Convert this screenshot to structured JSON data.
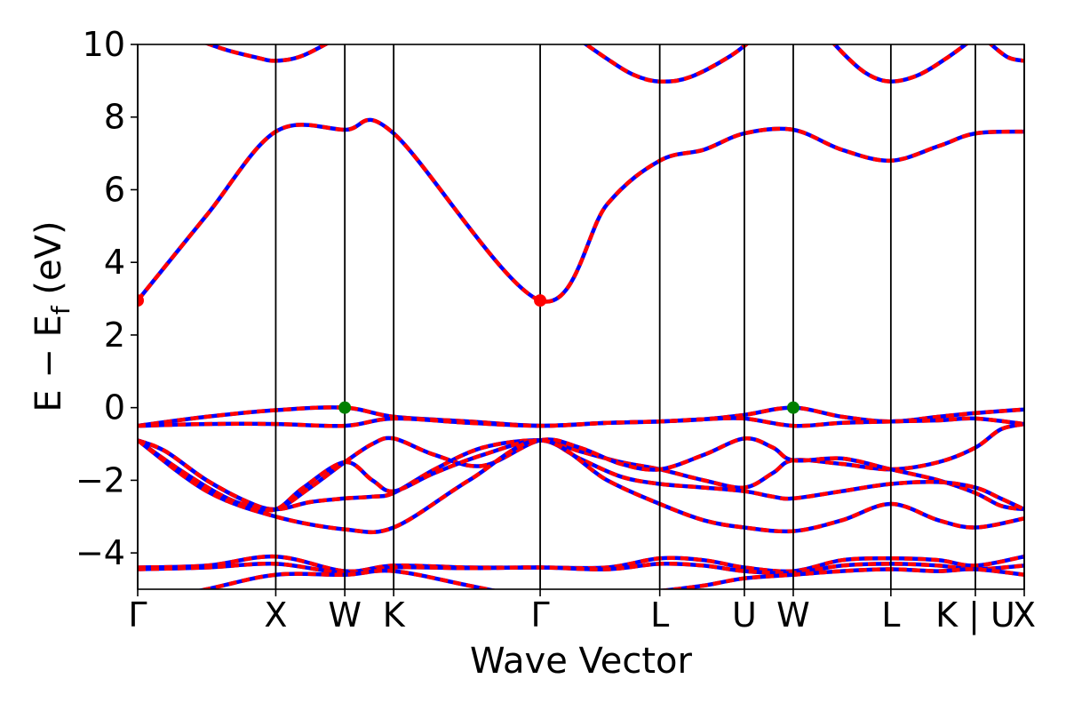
{
  "chart_data": {
    "type": "line",
    "title": "",
    "xlabel": "Wave Vector",
    "ylabel_main": "E − E",
    "ylabel_sub": "f",
    "ylabel_unit": " (eV)",
    "ylim": [
      -5,
      10
    ],
    "grid": false,
    "legend": "none",
    "yticks": [
      -4,
      -2,
      0,
      2,
      4,
      6,
      8,
      10
    ],
    "ytick_labels": [
      "−4",
      "−2",
      "0",
      "2",
      "4",
      "6",
      "8",
      "10"
    ],
    "kpoints": [
      {
        "label": "Γ",
        "k": 0
      },
      {
        "label": "X",
        "k": 1
      },
      {
        "label": "W",
        "k": 1.5
      },
      {
        "label": "K",
        "k": 1.854
      },
      {
        "label": "Γ",
        "k": 2.915
      },
      {
        "label": "L",
        "k": 3.781
      },
      {
        "label": "U",
        "k": 4.394
      },
      {
        "label": "W",
        "k": 4.748
      },
      {
        "label": "L",
        "k": 5.455
      },
      {
        "label": "K | U",
        "k": 6.067
      },
      {
        "label": "X",
        "k": 6.421
      }
    ],
    "xlim": [
      0,
      6.421
    ],
    "colors": {
      "band": "#ff0000",
      "band_dash": "#0000ff",
      "cbm": "#ff0000",
      "vbm": "#008000",
      "kline": "#000000"
    },
    "series": [
      {
        "x": [
          0,
          0.5,
          1.0,
          1.5,
          1.854,
          2.915,
          3.4,
          3.781,
          4.1,
          4.394,
          4.748,
          5.1,
          5.455,
          5.8,
          6.067,
          6.421
        ],
        "y": [
          2.95,
          5.3,
          7.6,
          7.65,
          7.55,
          2.95,
          5.6,
          6.8,
          7.1,
          7.55,
          7.65,
          7.1,
          6.8,
          7.2,
          7.55,
          7.6
        ]
      },
      {
        "x": [
          0,
          0.35,
          0.6,
          0.85,
          1.0,
          1.2,
          1.5
        ],
        "y": [
          11.2,
          10.3,
          9.9,
          9.65,
          9.55,
          9.7,
          10.3
        ]
      },
      {
        "x": [
          3.1,
          3.4,
          3.6,
          3.781,
          4.0,
          4.3,
          4.5
        ],
        "y": [
          10.4,
          9.6,
          9.15,
          8.98,
          9.1,
          9.7,
          10.3
        ]
      },
      {
        "x": [
          4.95,
          5.15,
          5.3,
          5.455,
          5.65,
          5.85,
          6.067
        ],
        "y": [
          10.4,
          9.6,
          9.15,
          8.98,
          9.15,
          9.6,
          10.2
        ]
      },
      {
        "x": [
          6.15,
          6.3,
          6.421
        ],
        "y": [
          10.1,
          9.65,
          9.55
        ]
      },
      {
        "x": [
          0,
          0.5,
          1.0,
          1.5,
          1.854,
          2.4,
          2.915,
          3.4,
          3.781,
          4.1,
          4.394,
          4.748,
          5.1,
          5.455,
          5.8,
          6.067,
          6.421
        ],
        "y": [
          -0.5,
          -0.25,
          -0.07,
          0.0,
          -0.25,
          -0.38,
          -0.5,
          -0.42,
          -0.38,
          -0.32,
          -0.2,
          0.0,
          -0.25,
          -0.38,
          -0.25,
          -0.15,
          -0.05
        ]
      },
      {
        "x": [
          0,
          0.5,
          1.0,
          1.5,
          1.854,
          2.4,
          2.915,
          3.4,
          3.781,
          4.1,
          4.394,
          4.748,
          5.1,
          5.455,
          5.8,
          6.067,
          6.421
        ],
        "y": [
          -0.5,
          -0.45,
          -0.45,
          -0.5,
          -0.3,
          -0.42,
          -0.5,
          -0.42,
          -0.38,
          -0.32,
          -0.3,
          -0.5,
          -0.42,
          -0.38,
          -0.35,
          -0.3,
          -0.45
        ]
      },
      {
        "x": [
          0,
          0.2,
          0.5,
          0.8,
          1.0,
          1.25,
          1.5,
          1.7,
          1.854,
          2.15,
          2.5,
          2.915,
          3.2,
          3.5,
          3.781,
          4.1,
          4.394,
          4.6,
          4.748,
          5.1,
          5.455,
          5.8,
          6.067,
          6.25,
          6.421
        ],
        "y": [
          -0.9,
          -1.2,
          -2.0,
          -2.6,
          -2.8,
          -2.6,
          -2.5,
          -2.45,
          -2.35,
          -1.7,
          -1.1,
          -0.9,
          -1.2,
          -1.5,
          -1.7,
          -2.0,
          -2.2,
          -1.8,
          -1.45,
          -1.55,
          -1.7,
          -1.5,
          -1.1,
          -0.6,
          -0.45
        ]
      },
      {
        "x": [
          0,
          0.2,
          0.5,
          0.8,
          1.0,
          1.25,
          1.5,
          1.7,
          1.854,
          2.15,
          2.5,
          2.915,
          3.2,
          3.5,
          3.781,
          4.1,
          4.394,
          4.6,
          4.748,
          5.1,
          5.455,
          5.8,
          6.067,
          6.25,
          6.421
        ],
        "y": [
          -0.9,
          -1.2,
          -2.0,
          -2.6,
          -2.8,
          -2.2,
          -1.5,
          -1.0,
          -0.85,
          -1.3,
          -1.6,
          -0.9,
          -1.1,
          -1.55,
          -1.7,
          -1.3,
          -0.85,
          -1.1,
          -1.45,
          -1.4,
          -1.7,
          -2.0,
          -2.35,
          -2.7,
          -2.8
        ]
      },
      {
        "x": [
          0,
          0.3,
          0.6,
          0.8,
          1.0,
          1.2,
          1.5,
          1.7,
          1.854,
          2.15,
          2.5,
          2.915,
          3.2,
          3.5,
          3.781,
          4.1,
          4.394,
          4.6,
          4.748,
          5.1,
          5.455,
          5.8,
          6.067,
          6.25,
          6.421
        ],
        "y": [
          -0.9,
          -1.7,
          -2.4,
          -2.7,
          -2.8,
          -2.2,
          -1.5,
          -2.0,
          -2.3,
          -1.8,
          -1.3,
          -0.9,
          -1.4,
          -1.9,
          -2.1,
          -2.2,
          -2.3,
          -2.45,
          -2.5,
          -2.3,
          -2.1,
          -2.05,
          -2.2,
          -2.5,
          -2.8
        ]
      },
      {
        "x": [
          0,
          0.5,
          1.0,
          1.5,
          1.854,
          2.4,
          2.915,
          3.4,
          3.781,
          4.1,
          4.394,
          4.748,
          5.1,
          5.455,
          5.8,
          6.067,
          6.421
        ],
        "y": [
          -0.9,
          -2.3,
          -3.0,
          -3.35,
          -3.3,
          -2.0,
          -0.9,
          -2.0,
          -2.65,
          -3.1,
          -3.3,
          -3.4,
          -3.1,
          -2.65,
          -3.1,
          -3.3,
          -3.05
        ]
      },
      {
        "x": [
          0,
          0.5,
          1.0,
          1.5,
          1.854,
          2.4,
          2.915,
          3.4,
          3.781,
          4.1,
          4.394,
          4.748,
          5.1,
          5.455,
          5.8,
          6.067,
          6.421
        ],
        "y": [
          -4.4,
          -4.35,
          -4.1,
          -4.5,
          -4.35,
          -4.4,
          -4.4,
          -4.4,
          -4.15,
          -4.2,
          -4.4,
          -4.5,
          -4.2,
          -4.15,
          -4.2,
          -4.35,
          -4.1
        ]
      },
      {
        "x": [
          0,
          0.5,
          1.0,
          1.5,
          1.854,
          2.4,
          2.915,
          3.4,
          3.781,
          4.1,
          4.394,
          4.748,
          5.1,
          5.455,
          5.8,
          6.067,
          6.421
        ],
        "y": [
          -4.45,
          -4.4,
          -4.3,
          -4.55,
          -4.4,
          -4.42,
          -4.4,
          -4.45,
          -4.3,
          -4.35,
          -4.5,
          -4.55,
          -4.35,
          -4.3,
          -4.35,
          -4.45,
          -4.35
        ]
      },
      {
        "x": [
          0,
          0.5,
          1.0,
          1.5,
          1.854,
          2.4,
          2.915
        ],
        "y": [
          -5.4,
          -5.0,
          -4.6,
          -4.6,
          -4.5,
          -4.9,
          -5.3
        ]
      },
      {
        "x": [
          3.4,
          3.781,
          4.1,
          4.394,
          4.748,
          5.1,
          5.455,
          5.8,
          6.067,
          6.421
        ],
        "y": [
          -5.2,
          -5.05,
          -4.9,
          -4.7,
          -4.6,
          -4.5,
          -4.45,
          -4.5,
          -4.45,
          -4.6
        ]
      }
    ],
    "vbm_points": [
      {
        "x": 1.5,
        "y": 0.0
      },
      {
        "x": 4.748,
        "y": 0.0
      }
    ],
    "cbm_points": [
      {
        "x": 0,
        "y": 2.95
      },
      {
        "x": 2.915,
        "y": 2.95
      }
    ]
  }
}
